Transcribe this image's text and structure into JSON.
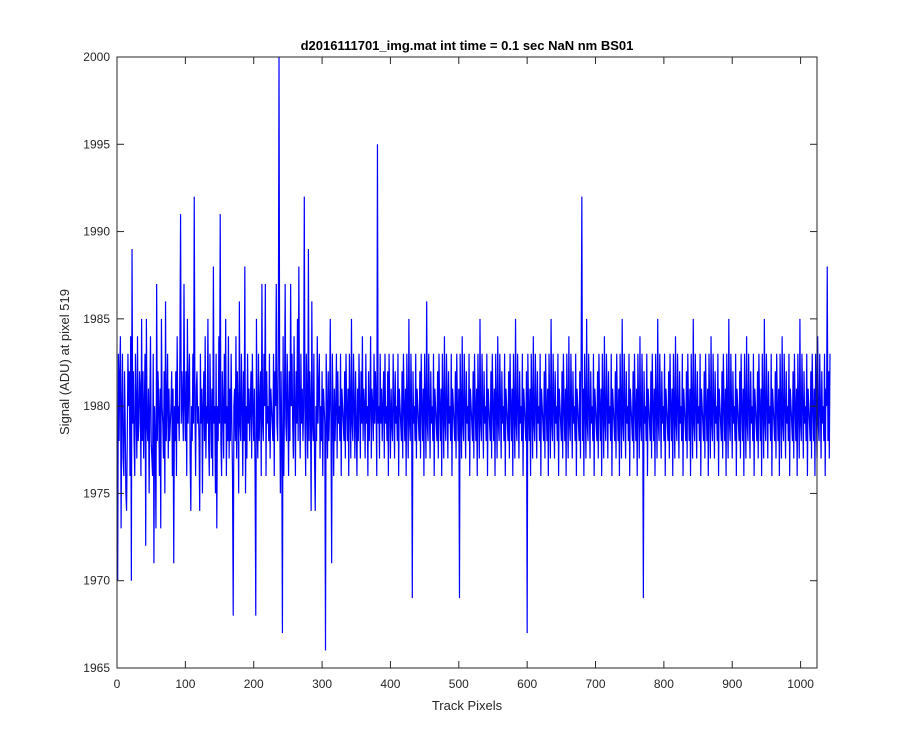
{
  "chart_data": {
    "type": "line",
    "title": "d2016111701_img.mat int time = 0.1 sec  NaN nm BS01",
    "xlabel": "Track Pixels",
    "ylabel": "Signal (ADU) at pixel 519",
    "xlim": [
      0,
      1024
    ],
    "ylim": [
      1965,
      2000
    ],
    "xticks": [
      0,
      100,
      200,
      300,
      400,
      500,
      600,
      700,
      800,
      900,
      1000
    ],
    "yticks": [
      1965,
      1970,
      1975,
      1980,
      1985,
      1990,
      1995,
      2000
    ],
    "grid": false,
    "legend": "none",
    "series": [
      {
        "color": "#0000ff",
        "x_start": 1,
        "x_step": 1,
        "values": [
          1970,
          1983,
          1978,
          1982,
          1984,
          1973,
          1980,
          1983,
          1977,
          1976,
          1982,
          1979,
          1975,
          1974,
          1978,
          1983,
          1980,
          1982,
          1976,
          1984,
          1970,
          1989,
          1979,
          1982,
          1978,
          1976,
          1983,
          1980,
          1977,
          1984,
          1978,
          1979,
          1982,
          1981,
          1976,
          1985,
          1978,
          1982,
          1977,
          1980,
          1983,
          1972,
          1985,
          1979,
          1978,
          1981,
          1975,
          1980,
          1984,
          1978,
          1977,
          1976,
          1983,
          1971,
          1980,
          1978,
          1973,
          1987,
          1978,
          1982,
          1980,
          1976,
          1981,
          1973,
          1985,
          1980,
          1979,
          1977,
          1982,
          1975,
          1986,
          1978,
          1980,
          1983,
          1977,
          1981,
          1978,
          1979,
          1980,
          1982,
          1976,
          1981,
          1971,
          1980,
          1978,
          1982,
          1976,
          1984,
          1979,
          1980,
          1978,
          1983,
          1991,
          1979,
          1982,
          1980,
          1978,
          1987,
          1980,
          1978,
          1982,
          1976,
          1985,
          1979,
          1981,
          1983,
          1977,
          1974,
          1980,
          1978,
          1983,
          1979,
          1992,
          1980,
          1976,
          1981,
          1982,
          1979,
          1980,
          1978,
          1974,
          1983,
          1979,
          1981,
          1975,
          1980,
          1982,
          1978,
          1984,
          1977,
          1980,
          1979,
          1985,
          1978,
          1976,
          1983,
          1980,
          1977,
          1981,
          1976,
          1988,
          1979,
          1980,
          1975,
          1983,
          1973,
          1980,
          1978,
          1984,
          1979,
          1991,
          1978,
          1976,
          1982,
          1980,
          1977,
          1983,
          1979,
          1985,
          1976,
          1980,
          1978,
          1984,
          1977,
          1981,
          1978,
          1983,
          1979,
          1976,
          1968,
          1980,
          1981,
          1978,
          1984,
          1977,
          1982,
          1980,
          1975,
          1986,
          1979,
          1978,
          1983,
          1980,
          1976,
          1982,
          1978,
          1988,
          1975,
          1980,
          1977,
          1983,
          1979,
          1981,
          1978,
          1980,
          1982,
          1977,
          1983,
          1980,
          1978,
          1981,
          1976,
          1968,
          1985,
          1979,
          1977,
          1983,
          1978,
          1980,
          1982,
          1976,
          1987,
          1979,
          1978,
          1983,
          1980,
          1987,
          1976,
          1982,
          1979,
          1980,
          1978,
          1983,
          1977,
          1981,
          1980,
          1979,
          1978,
          1983,
          1976,
          1982,
          1980,
          1987,
          1979,
          1978,
          1983,
          2000,
          1980,
          1975,
          1982,
          1978,
          1967,
          1984,
          1976,
          1980,
          1987,
          1979,
          1978,
          1983,
          1980,
          1976,
          1982,
          1978,
          1987,
          1980,
          1983,
          1979,
          1977,
          1984,
          1980,
          1976,
          1982,
          1979,
          1985,
          1978,
          1988,
          1980,
          1977,
          1983,
          1979,
          1981,
          1978,
          1980,
          1992,
          1979,
          1976,
          1983,
          1980,
          1977,
          1989,
          1978,
          1982,
          1980,
          1974,
          1986,
          1979,
          1978,
          1983,
          1977,
          1974,
          1980,
          1978,
          1984,
          1979,
          1981,
          1983,
          1977,
          1980,
          1978,
          1982,
          1976,
          1981,
          1980,
          1979,
          1966,
          1983,
          1980,
          1977,
          1982,
          1978,
          1980,
          1985,
          1979,
          1971,
          1983,
          1980,
          1976,
          1981,
          1978,
          1980,
          1983,
          1977,
          1982,
          1979,
          1980,
          1978,
          1983,
          1976,
          1981,
          1980,
          1979,
          1978,
          1982,
          1977,
          1983,
          1980,
          1978,
          1981,
          1976,
          1983,
          1980,
          1977,
          1985,
          1979,
          1978,
          1983,
          1980,
          1977,
          1982,
          1979,
          1976,
          1981,
          1978,
          1983,
          1980,
          1977,
          1982,
          1979,
          1984,
          1978,
          1981,
          1980,
          1977,
          1983,
          1979,
          1980,
          1976,
          1982,
          1978,
          1980,
          1984,
          1977,
          1981,
          1980,
          1978,
          1983,
          1979,
          1982,
          1980,
          1976,
          1995,
          1979,
          1980,
          1977,
          1983,
          1979,
          1981,
          1978,
          1980,
          1982,
          1977,
          1983,
          1979,
          1980,
          1978,
          1982,
          1976,
          1983,
          1980,
          1977,
          1981,
          1979,
          1978,
          1983,
          1980,
          1977,
          1982,
          1979,
          1980,
          1978,
          1983,
          1976,
          1981,
          1980,
          1979,
          1978,
          1982,
          1977,
          1983,
          1980,
          1978,
          1981,
          1976,
          1983,
          1980,
          1977,
          1985,
          1979,
          1978,
          1983,
          1980,
          1969,
          1982,
          1979,
          1980,
          1978,
          1983,
          1977,
          1981,
          1980,
          1979,
          1978,
          1982,
          1977,
          1983,
          1980,
          1978,
          1981,
          1976,
          1983,
          1980,
          1977,
          1986,
          1979,
          1978,
          1983,
          1980,
          1977,
          1982,
          1979,
          1980,
          1978,
          1983,
          1976,
          1981,
          1980,
          1979,
          1978,
          1982,
          1977,
          1983,
          1980,
          1978,
          1981,
          1976,
          1983,
          1980,
          1977,
          1984,
          1979,
          1978,
          1983,
          1980,
          1977,
          1982,
          1979,
          1980,
          1978,
          1983,
          1976,
          1981,
          1980,
          1979,
          1978,
          1982,
          1977,
          1983,
          1980,
          1978,
          1981,
          1969,
          1983,
          1980,
          1977,
          1984,
          1979,
          1978,
          1983,
          1980,
          1977,
          1982,
          1979,
          1980,
          1978,
          1983,
          1976,
          1981,
          1980,
          1979,
          1978,
          1982,
          1977,
          1983,
          1980,
          1978,
          1981,
          1976,
          1983,
          1980,
          1977,
          1985,
          1979,
          1978,
          1983,
          1980,
          1977,
          1982,
          1979,
          1980,
          1978,
          1983,
          1976,
          1981,
          1980,
          1979,
          1978,
          1982,
          1977,
          1983,
          1980,
          1978,
          1981,
          1976,
          1983,
          1980,
          1977,
          1984,
          1979,
          1978,
          1983,
          1980,
          1977,
          1982,
          1979,
          1980,
          1978,
          1983,
          1976,
          1981,
          1980,
          1979,
          1978,
          1982,
          1977,
          1983,
          1980,
          1978,
          1981,
          1976,
          1983,
          1980,
          1977,
          1985,
          1979,
          1978,
          1983,
          1980,
          1977,
          1982,
          1979,
          1980,
          1978,
          1983,
          1976,
          1981,
          1980,
          1979,
          1978,
          1982,
          1967,
          1983,
          1980,
          1978,
          1981,
          1976,
          1983,
          1980,
          1977,
          1984,
          1979,
          1978,
          1983,
          1980,
          1977,
          1982,
          1979,
          1980,
          1978,
          1983,
          1976,
          1981,
          1980,
          1979,
          1978,
          1982,
          1977,
          1983,
          1980,
          1978,
          1981,
          1976,
          1983,
          1980,
          1977,
          1985,
          1979,
          1978,
          1983,
          1980,
          1977,
          1982,
          1979,
          1980,
          1978,
          1983,
          1976,
          1981,
          1980,
          1979,
          1978,
          1982,
          1977,
          1983,
          1980,
          1978,
          1981,
          1976,
          1983,
          1980,
          1977,
          1984,
          1979,
          1978,
          1983,
          1980,
          1977,
          1982,
          1979,
          1980,
          1978,
          1983,
          1976,
          1981,
          1980,
          1979,
          1978,
          1982,
          1977,
          1983,
          1992,
          1978,
          1981,
          1976,
          1983,
          1980,
          1977,
          1985,
          1979,
          1978,
          1983,
          1980,
          1977,
          1982,
          1979,
          1980,
          1978,
          1983,
          1976,
          1981,
          1980,
          1979,
          1978,
          1982,
          1977,
          1983,
          1980,
          1978,
          1981,
          1976,
          1983,
          1980,
          1977,
          1984,
          1979,
          1978,
          1983,
          1980,
          1977,
          1982,
          1979,
          1980,
          1978,
          1983,
          1976,
          1981,
          1980,
          1979,
          1978,
          1982,
          1977,
          1983,
          1980,
          1978,
          1981,
          1976,
          1983,
          1980,
          1977,
          1985,
          1979,
          1978,
          1983,
          1980,
          1977,
          1982,
          1979,
          1980,
          1978,
          1983,
          1976,
          1981,
          1980,
          1979,
          1978,
          1982,
          1977,
          1983,
          1980,
          1978,
          1981,
          1976,
          1983,
          1980,
          1977,
          1984,
          1979,
          1978,
          1983,
          1980,
          1969,
          1982,
          1979,
          1980,
          1978,
          1983,
          1976,
          1981,
          1980,
          1979,
          1978,
          1982,
          1977,
          1983,
          1980,
          1978,
          1981,
          1976,
          1983,
          1980,
          1977,
          1985,
          1979,
          1978,
          1983,
          1980,
          1977,
          1982,
          1979,
          1980,
          1978,
          1983,
          1976,
          1981,
          1980,
          1979,
          1978,
          1982,
          1977,
          1983,
          1980,
          1978,
          1981,
          1976,
          1983,
          1980,
          1977,
          1984,
          1979,
          1978,
          1983,
          1980,
          1977,
          1982,
          1979,
          1980,
          1978,
          1983,
          1976,
          1981,
          1980,
          1979,
          1978,
          1982,
          1977,
          1983,
          1980,
          1978,
          1981,
          1976,
          1983,
          1980,
          1977,
          1985,
          1979,
          1978,
          1983,
          1980,
          1977,
          1982,
          1979,
          1980,
          1978,
          1983,
          1976,
          1981,
          1980,
          1979,
          1978,
          1982,
          1977,
          1983,
          1980,
          1978,
          1981,
          1976,
          1983,
          1980,
          1977,
          1984,
          1979,
          1978,
          1983,
          1980,
          1977,
          1982,
          1979,
          1980,
          1978,
          1983,
          1976,
          1981,
          1980,
          1979,
          1978,
          1982,
          1977,
          1983,
          1980,
          1978,
          1981,
          1976,
          1983,
          1980,
          1977,
          1985,
          1979,
          1978,
          1983,
          1980,
          1977,
          1982,
          1979,
          1980,
          1978,
          1983,
          1976,
          1981,
          1980,
          1979,
          1978,
          1982,
          1977,
          1983,
          1980,
          1978,
          1981,
          1976,
          1983,
          1980,
          1977,
          1984,
          1979,
          1978,
          1983,
          1980,
          1977,
          1982,
          1979,
          1980,
          1978,
          1983,
          1976,
          1981,
          1980,
          1979,
          1978,
          1982,
          1977,
          1983,
          1980,
          1978,
          1981,
          1976,
          1983,
          1980,
          1977,
          1985,
          1979,
          1978,
          1983,
          1980,
          1977,
          1982,
          1979,
          1980,
          1978,
          1983,
          1976,
          1981,
          1980,
          1979,
          1978,
          1982,
          1977,
          1983,
          1980,
          1978,
          1981,
          1976,
          1983,
          1980,
          1977,
          1984,
          1979,
          1978,
          1983,
          1980,
          1977,
          1982,
          1979,
          1980,
          1978,
          1983,
          1976,
          1981,
          1980,
          1979,
          1978,
          1982,
          1977,
          1983,
          1980,
          1978,
          1981,
          1976,
          1983,
          1980,
          1977,
          1985,
          1979,
          1978,
          1983,
          1980,
          1977,
          1982,
          1979,
          1980,
          1978,
          1983,
          1976,
          1981,
          1980,
          1979,
          1978,
          1982,
          1977,
          1983,
          1980,
          1978,
          1981,
          1976,
          1983,
          1980,
          1977,
          1984,
          1979,
          1978,
          1983,
          1980,
          1977,
          1982,
          1979,
          1980,
          1978,
          1983,
          1976,
          1981,
          1980,
          1988,
          1978,
          1982,
          1977,
          1983
        ]
      }
    ]
  }
}
